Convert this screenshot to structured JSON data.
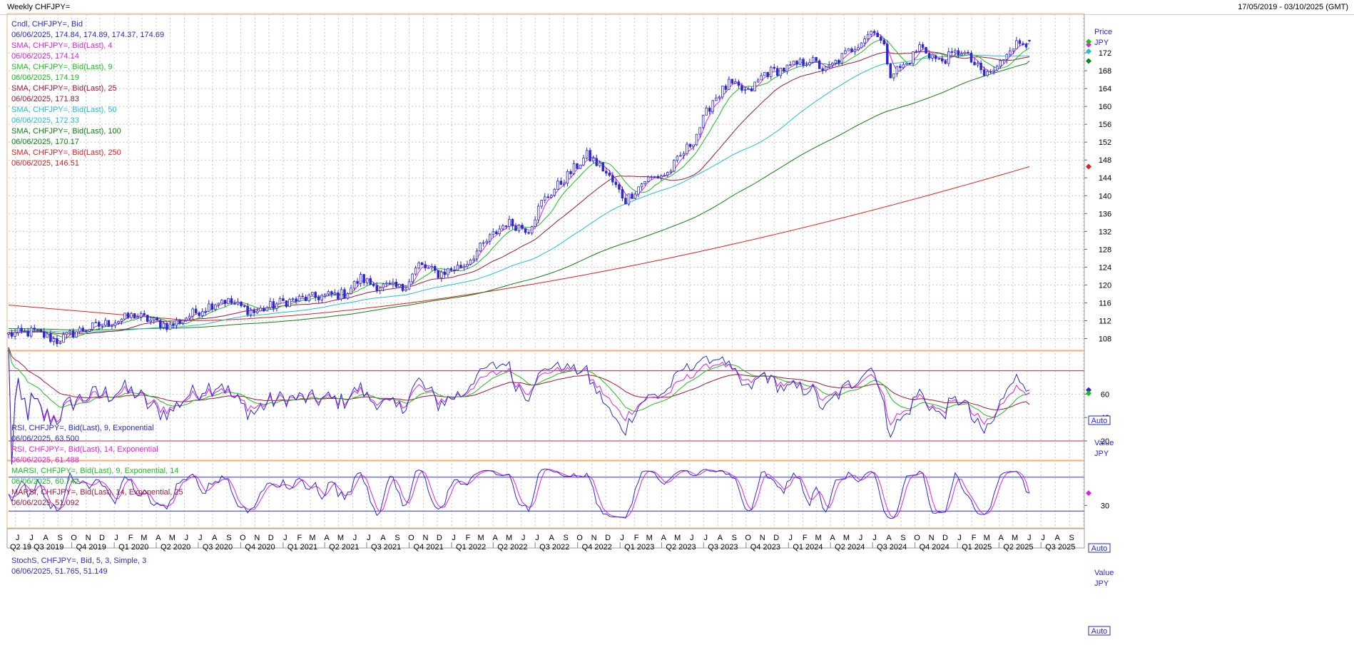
{
  "window": {
    "title": "Weekly CHFJPY=",
    "date_range": "17/05/2019 - 03/10/2025 (GMT)"
  },
  "colors": {
    "candle": "#2a2acc",
    "sma4": "#e020e0",
    "sma9": "#18c018",
    "sma25": "#a01838",
    "sma50": "#20c0d0",
    "sma100": "#108010",
    "sma250": "#e02020",
    "rsi9": "#2a2acc",
    "rsi14": "#e020e0",
    "marsi9": "#18c018",
    "marsi14": "#a01838",
    "stoch_k": "#2a2acc",
    "stoch_d": "#e020e0",
    "band_rsi": "#c02050",
    "band_stoch": "#3030d0",
    "border": "#f0b070",
    "grid": "#c8c8c8"
  },
  "chart_data": [
    {
      "type": "candlestick",
      "panel": "price",
      "unit_label": "Price",
      "currency": "JPY",
      "auto_label": "Auto",
      "ylim": [
        106,
        180
      ],
      "y_ticks": [
        108,
        112,
        116,
        120,
        124,
        128,
        132,
        136,
        140,
        144,
        148,
        152,
        156,
        160,
        164,
        168,
        172
      ],
      "legend": [
        {
          "key": "sma_cndl",
          "line1": "Cndl, CHFJPY=, Bid",
          "line2": "06/06/2025, 174.84, 174.89, 174.37, 174.69",
          "color": "#2a2acc"
        },
        {
          "key": "sma4",
          "line1": "SMA, CHFJPY=, Bid(Last), 4",
          "line2": "06/06/2025, 174.14",
          "color": "#e020e0"
        },
        {
          "key": "sma9",
          "line1": "SMA, CHFJPY=, Bid(Last), 9",
          "line2": "06/06/2025, 174.19",
          "color": "#18c018"
        },
        {
          "key": "sma25",
          "line1": "SMA, CHFJPY=, Bid(Last), 25",
          "line2": "06/06/2025, 171.83",
          "color": "#a01838"
        },
        {
          "key": "sma50",
          "line1": "SMA, CHFJPY=, Bid(Last), 50",
          "line2": "06/06/2025, 172.33",
          "color": "#20c0d0"
        },
        {
          "key": "sma100",
          "line1": "SMA, CHFJPY=, Bid(Last), 100",
          "line2": "06/06/2025, 170.17",
          "color": "#108010"
        },
        {
          "key": "sma250",
          "line1": "SMA, CHFJPY=, Bid(Last), 250",
          "line2": "06/06/2025, 146.51",
          "color": "#e02020"
        }
      ],
      "close_anchors": [
        [
          "2019-05-17",
          108.9
        ],
        [
          "2019-07-12",
          109.5
        ],
        [
          "2019-08-30",
          107.5
        ],
        [
          "2019-10-11",
          109.6
        ],
        [
          "2019-12-20",
          111.5
        ],
        [
          "2020-02-14",
          113.2
        ],
        [
          "2020-03-27",
          111.8
        ],
        [
          "2020-05-01",
          110.8
        ],
        [
          "2020-06-12",
          113.2
        ],
        [
          "2020-08-21",
          116.8
        ],
        [
          "2020-10-30",
          113.9
        ],
        [
          "2020-12-31",
          116.2
        ],
        [
          "2021-03-26",
          117.5
        ],
        [
          "2021-05-14",
          118.0
        ],
        [
          "2021-06-18",
          121.5
        ],
        [
          "2021-07-16",
          120.0
        ],
        [
          "2021-09-17",
          119.2
        ],
        [
          "2021-10-22",
          124.5
        ],
        [
          "2021-12-03",
          122.5
        ],
        [
          "2022-01-28",
          124.5
        ],
        [
          "2022-03-25",
          130.5
        ],
        [
          "2022-04-29",
          134.0
        ],
        [
          "2022-06-17",
          132.5
        ],
        [
          "2022-07-15",
          138.5
        ],
        [
          "2022-09-09",
          144.5
        ],
        [
          "2022-10-21",
          149.0
        ],
        [
          "2022-11-25",
          146.0
        ],
        [
          "2023-01-13",
          139.0
        ],
        [
          "2023-02-24",
          143.5
        ],
        [
          "2023-04-14",
          145.0
        ],
        [
          "2023-06-09",
          152.5
        ],
        [
          "2023-07-21",
          161.5
        ],
        [
          "2023-08-25",
          165.0
        ],
        [
          "2023-10-06",
          163.0
        ],
        [
          "2023-11-10",
          167.5
        ],
        [
          "2023-12-29",
          168.5
        ],
        [
          "2024-02-16",
          170.5
        ],
        [
          "2024-03-22",
          168.0
        ],
        [
          "2024-05-24",
          173.5
        ],
        [
          "2024-07-05",
          177.5
        ],
        [
          "2024-07-26",
          173.0
        ],
        [
          "2024-08-09",
          167.5
        ],
        [
          "2024-09-13",
          169.5
        ],
        [
          "2024-10-11",
          173.5
        ],
        [
          "2024-11-22",
          170.0
        ],
        [
          "2025-01-10",
          172.5
        ],
        [
          "2025-02-28",
          167.0
        ],
        [
          "2025-03-28",
          168.5
        ],
        [
          "2025-04-25",
          173.5
        ],
        [
          "2025-06-06",
          174.69
        ]
      ],
      "last_candle": {
        "date": "2025-06-06",
        "open": 174.84,
        "high": 174.89,
        "low": 174.37,
        "close": 174.69
      },
      "sma_last": {
        "sma4": 174.14,
        "sma9": 174.19,
        "sma25": 171.83,
        "sma50": 172.33,
        "sma100": 170.17,
        "sma250": 146.51
      }
    },
    {
      "type": "line",
      "panel": "rsi",
      "unit_label": "Value",
      "currency": "JPY",
      "auto_label": "Auto",
      "ylim": [
        6,
        95
      ],
      "y_ticks": [
        20,
        40,
        60
      ],
      "bands": [
        80,
        20
      ],
      "legend": [
        {
          "key": "rsi9",
          "line1": "RSI, CHFJPY=, Bid(Last), 9, Exponential",
          "line2": "06/06/2025, 63.500",
          "color": "#2a2acc"
        },
        {
          "key": "rsi14",
          "line1": "RSI, CHFJPY=, Bid(Last), 14, Exponential",
          "line2": "06/06/2025, 61.488",
          "color": "#e020e0"
        },
        {
          "key": "marsi9",
          "line1": "MARSI, CHFJPY=, Bid(Last), 9, Exponential, 14",
          "line2": "06/06/2025, 60.742",
          "color": "#18c018"
        },
        {
          "key": "marsi14",
          "line1": "MARSI, CHFJPY=, Bid(Last), 14, Exponential, 25",
          "line2": "06/06/2025, 51.092",
          "color": "#a01838"
        }
      ],
      "last_values": {
        "rsi9": 63.5,
        "rsi14": 61.488,
        "marsi9": 60.742,
        "marsi14": 51.092
      }
    },
    {
      "type": "line",
      "panel": "stoch",
      "unit_label": "Value",
      "currency": "JPY",
      "auto_label": "Auto",
      "ylim": [
        -5,
        105
      ],
      "y_ticks": [
        30
      ],
      "bands": [
        80,
        20
      ],
      "legend": [
        {
          "key": "stoch",
          "line1": "StochS, CHFJPY=, Bid, 5, 3, Simple, 3",
          "line2": "06/06/2025, 51.765, 51.149",
          "color": "#2a2acc"
        }
      ],
      "last_values": {
        "k": 51.765,
        "d": 51.149
      }
    }
  ],
  "x_axis": {
    "start": "2019-05-17",
    "end": "2025-10-03",
    "month_letters": [
      "J",
      "J",
      "A",
      "S",
      "O",
      "N",
      "D",
      "J",
      "F",
      "M",
      "A",
      "M",
      "J",
      "J",
      "A",
      "S",
      "O",
      "N",
      "D",
      "J",
      "F",
      "M",
      "A",
      "M",
      "J",
      "J",
      "A",
      "S",
      "O",
      "N",
      "D",
      "J",
      "F",
      "M",
      "A",
      "M",
      "J",
      "J",
      "A",
      "S",
      "O",
      "N",
      "D",
      "J",
      "F",
      "M",
      "A",
      "M",
      "J",
      "J",
      "A",
      "S",
      "O",
      "N",
      "D",
      "J",
      "F",
      "M",
      "A",
      "M",
      "J",
      "J",
      "A",
      "S",
      "O",
      "N",
      "D",
      "J",
      "F",
      "M",
      "A",
      "M",
      "J",
      "J",
      "A",
      "S"
    ],
    "quarters": [
      "Q2 19",
      "Q3 2019",
      "Q4 2019",
      "Q1 2020",
      "Q2 2020",
      "Q3 2020",
      "Q4 2020",
      "Q1 2021",
      "Q2 2021",
      "Q3 2021",
      "Q4 2021",
      "Q1 2022",
      "Q2 2022",
      "Q3 2022",
      "Q4 2022",
      "Q1 2023",
      "Q2 2023",
      "Q3 2023",
      "Q4 2023",
      "Q1 2024",
      "Q2 2024",
      "Q3 2024",
      "Q4 2024",
      "Q1 2025",
      "Q2 2025",
      "Q3 2025"
    ]
  }
}
